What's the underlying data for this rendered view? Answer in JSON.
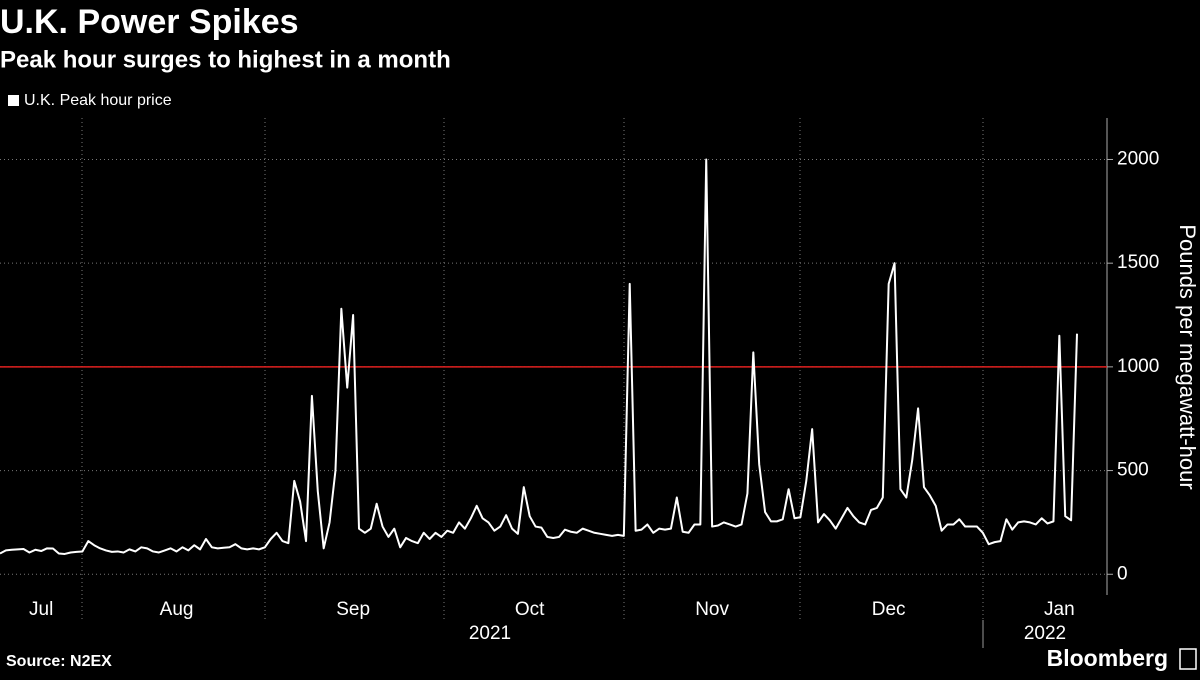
{
  "chart_data": {
    "type": "line",
    "title": "U.K. Power Spikes",
    "subtitle": "Peak hour surges to highest in a month",
    "y_axis_label": "Pounds per megawatt-hour",
    "source": "Source: N2EX",
    "brand": "Bloomberg",
    "categories": [
      null,
      null,
      null,
      null,
      null,
      null,
      null,
      "Jul",
      null,
      null,
      null,
      null,
      null,
      null,
      null,
      null,
      null,
      null,
      null,
      null,
      null,
      null,
      null,
      null,
      null,
      null,
      null,
      null,
      null,
      null,
      "Aug",
      null,
      null,
      null,
      null,
      null,
      null,
      null,
      null,
      null,
      null,
      null,
      null,
      null,
      null,
      null,
      null,
      null,
      null,
      null,
      null,
      null,
      null,
      null,
      null,
      null,
      null,
      null,
      null,
      null,
      "Sep",
      null,
      null,
      null,
      null,
      null,
      null,
      null,
      null,
      null,
      null,
      null,
      null,
      null,
      null,
      null,
      null,
      null,
      null,
      null,
      null,
      null,
      null,
      null,
      null,
      null,
      null,
      null,
      null,
      null,
      "Oct",
      null,
      null,
      null,
      null,
      null,
      null,
      null,
      null,
      null,
      null,
      null,
      null,
      null,
      null,
      null,
      null,
      null,
      null,
      null,
      null,
      null,
      null,
      null,
      null,
      null,
      null,
      null,
      null,
      null,
      null,
      "Nov",
      null,
      null,
      null,
      null,
      null,
      null,
      null,
      null,
      null,
      null,
      null,
      null,
      null,
      null,
      null,
      null,
      null,
      null,
      null,
      null,
      null,
      null,
      null,
      null,
      null,
      null,
      null,
      null,
      null,
      "Dec",
      null,
      null,
      null,
      null,
      null,
      null,
      null,
      null,
      null,
      null,
      null,
      null,
      null,
      null,
      null,
      null,
      null,
      null,
      null,
      null,
      null,
      null,
      null,
      null,
      null,
      null,
      null,
      null,
      "Jan",
      null,
      null,
      null
    ],
    "year_labels": [
      "2021",
      "2022"
    ],
    "series": [
      {
        "name": "U.K. Peak hour price",
        "color": "#ffffff",
        "values": [
          100,
          115,
          118,
          120,
          122,
          105,
          118,
          112,
          125,
          124,
          100,
          98,
          105,
          108,
          110,
          160,
          140,
          125,
          115,
          108,
          110,
          105,
          120,
          110,
          130,
          125,
          110,
          105,
          115,
          125,
          110,
          130,
          115,
          140,
          120,
          170,
          130,
          125,
          128,
          130,
          145,
          125,
          120,
          125,
          120,
          130,
          170,
          200,
          160,
          150,
          450,
          350,
          160,
          860,
          400,
          125,
          250,
          500,
          1280,
          900,
          1250,
          220,
          200,
          220,
          340,
          230,
          180,
          220,
          130,
          175,
          160,
          150,
          200,
          170,
          200,
          180,
          210,
          200,
          250,
          220,
          270,
          330,
          270,
          250,
          210,
          230,
          285,
          220,
          195,
          420,
          280,
          230,
          225,
          180,
          175,
          180,
          215,
          205,
          200,
          220,
          210,
          200,
          195,
          190,
          185,
          190,
          185,
          1400,
          210,
          215,
          240,
          200,
          220,
          215,
          220,
          370,
          205,
          200,
          240,
          240,
          2000,
          230,
          235,
          250,
          240,
          230,
          240,
          390,
          1070,
          530,
          300,
          255,
          255,
          265,
          410,
          270,
          275,
          450,
          700,
          250,
          290,
          260,
          220,
          270,
          320,
          280,
          250,
          240,
          310,
          320,
          370,
          1400,
          1500,
          410,
          370,
          550,
          800,
          420,
          380,
          330,
          210,
          240,
          240,
          265,
          230,
          230,
          230,
          200,
          145,
          155,
          160,
          265,
          215,
          250,
          255,
          250,
          240,
          270,
          245,
          255,
          1150,
          280,
          260,
          1160
        ]
      }
    ],
    "reference_line": {
      "value": 1000,
      "color": "#e0201f"
    },
    "ylim": [
      -100,
      2200
    ],
    "yticks": [
      0,
      500,
      1000,
      1500,
      2000
    ],
    "grid": true
  }
}
